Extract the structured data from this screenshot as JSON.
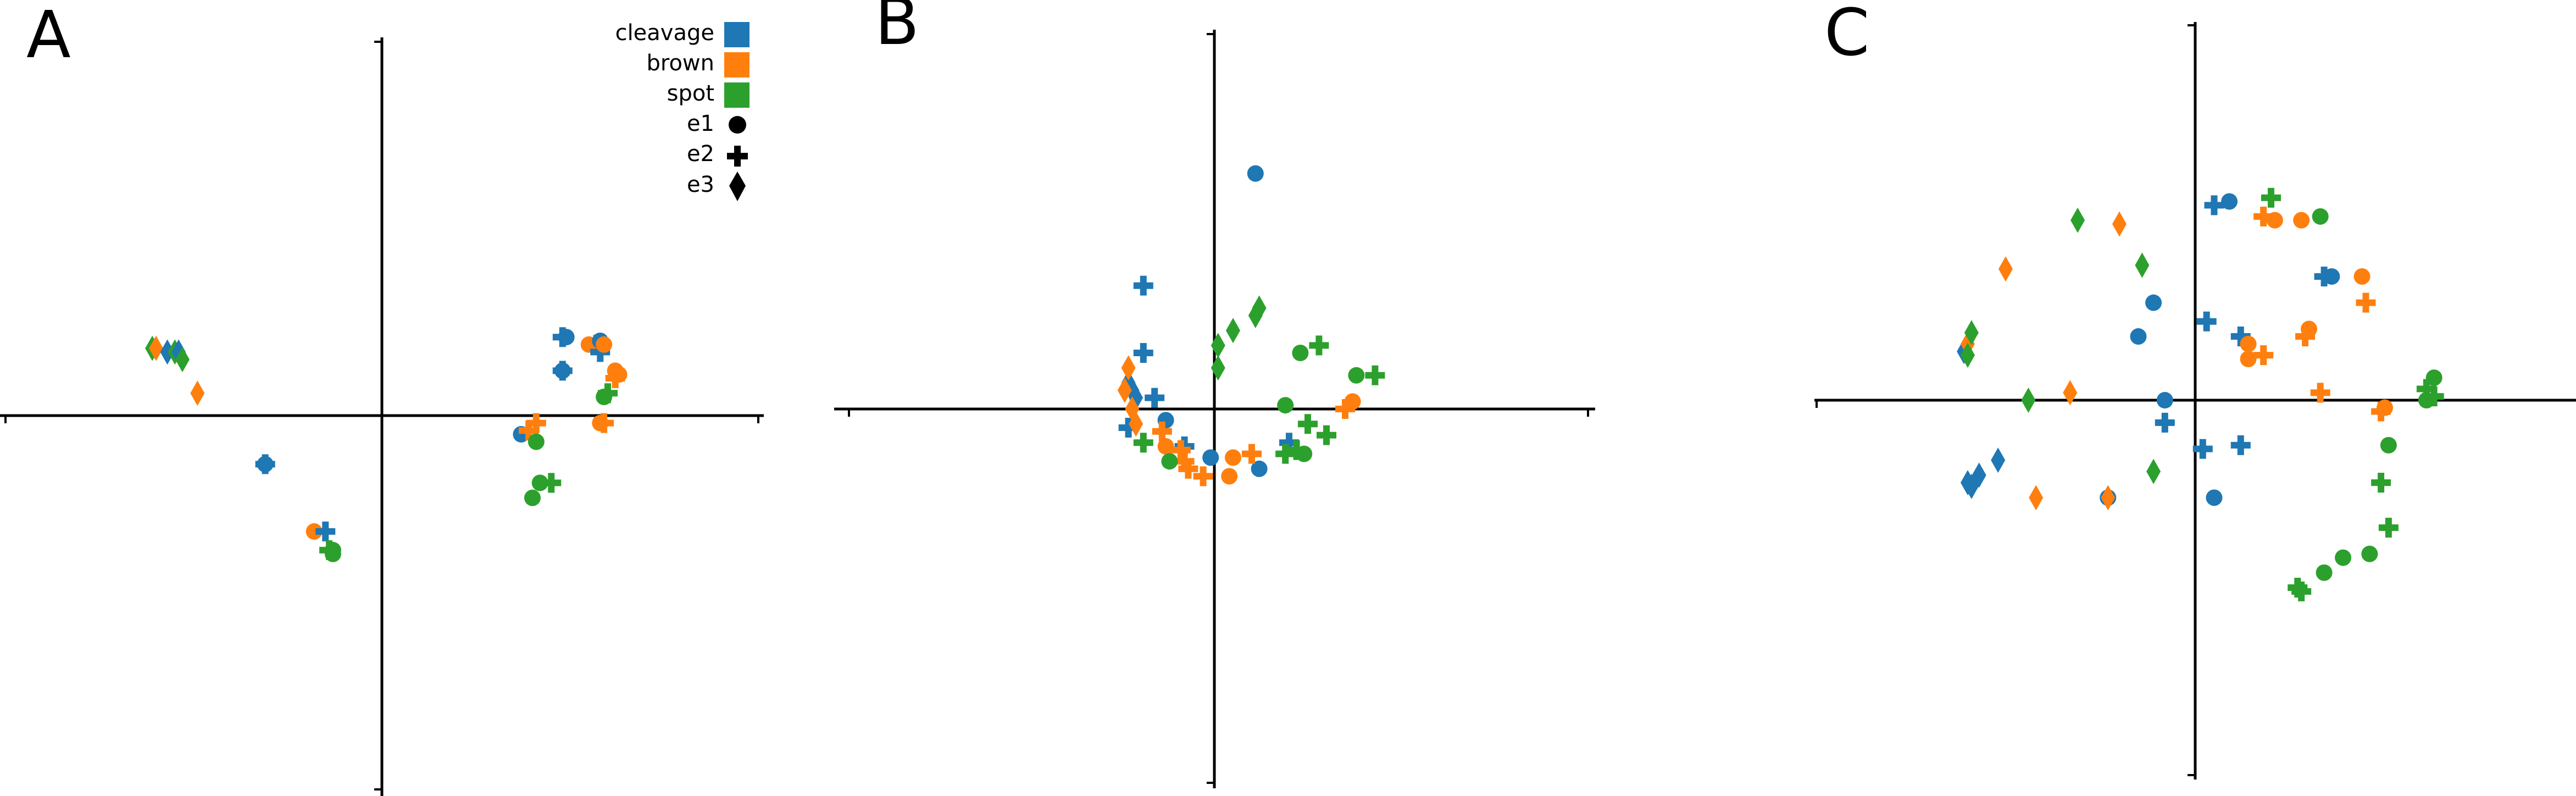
{
  "colors": {
    "cleavage": "#1f77b4",
    "brown": "#ff7f0e",
    "spot": "#2ca02c"
  },
  "legend": {
    "position": "top-right of panel A",
    "color_entries": [
      {
        "label": "cleavage",
        "color": "#1f77b4"
      },
      {
        "label": "brown",
        "color": "#ff7f0e"
      },
      {
        "label": "spot",
        "color": "#2ca02c"
      }
    ],
    "marker_entries": [
      {
        "label": "e1",
        "marker": "circle"
      },
      {
        "label": "e2",
        "marker": "plus"
      },
      {
        "label": "e3",
        "marker": "diamond"
      }
    ]
  },
  "chart_data": [
    {
      "panel": "A",
      "type": "scatter",
      "title": "",
      "xlabel": "",
      "ylabel": "",
      "xlim": [
        -1,
        1
      ],
      "ylim": [
        -1,
        1
      ],
      "grid": false,
      "axes": "centered spines, no tick labels",
      "points": [
        {
          "x": -0.61,
          "y": 0.18,
          "group": "spot",
          "marker": "diamond"
        },
        {
          "x": -0.6,
          "y": 0.18,
          "group": "brown",
          "marker": "diamond"
        },
        {
          "x": -0.57,
          "y": 0.17,
          "group": "cleavage",
          "marker": "diamond"
        },
        {
          "x": -0.55,
          "y": 0.17,
          "group": "spot",
          "marker": "diamond"
        },
        {
          "x": -0.54,
          "y": 0.17,
          "group": "cleavage",
          "marker": "diamond"
        },
        {
          "x": -0.53,
          "y": 0.15,
          "group": "spot",
          "marker": "diamond"
        },
        {
          "x": -0.49,
          "y": 0.06,
          "group": "brown",
          "marker": "diamond"
        },
        {
          "x": -0.31,
          "y": -0.13,
          "group": "cleavage",
          "marker": "plus"
        },
        {
          "x": -0.31,
          "y": -0.13,
          "group": "cleavage",
          "marker": "circle"
        },
        {
          "x": -0.18,
          "y": -0.31,
          "group": "brown",
          "marker": "circle"
        },
        {
          "x": -0.15,
          "y": -0.31,
          "group": "cleavage",
          "marker": "plus"
        },
        {
          "x": -0.14,
          "y": -0.36,
          "group": "spot",
          "marker": "plus"
        },
        {
          "x": -0.13,
          "y": -0.36,
          "group": "spot",
          "marker": "circle"
        },
        {
          "x": -0.13,
          "y": -0.37,
          "group": "spot",
          "marker": "circle"
        },
        {
          "x": 0.37,
          "y": -0.05,
          "group": "cleavage",
          "marker": "circle"
        },
        {
          "x": 0.39,
          "y": -0.04,
          "group": "brown",
          "marker": "plus"
        },
        {
          "x": 0.41,
          "y": -0.02,
          "group": "brown",
          "marker": "plus"
        },
        {
          "x": 0.41,
          "y": -0.07,
          "group": "spot",
          "marker": "circle"
        },
        {
          "x": 0.42,
          "y": -0.18,
          "group": "spot",
          "marker": "circle"
        },
        {
          "x": 0.4,
          "y": -0.22,
          "group": "spot",
          "marker": "circle"
        },
        {
          "x": 0.45,
          "y": -0.18,
          "group": "spot",
          "marker": "plus"
        },
        {
          "x": 0.48,
          "y": 0.21,
          "group": "cleavage",
          "marker": "plus"
        },
        {
          "x": 0.49,
          "y": 0.21,
          "group": "cleavage",
          "marker": "circle"
        },
        {
          "x": 0.48,
          "y": 0.12,
          "group": "cleavage",
          "marker": "plus"
        },
        {
          "x": 0.48,
          "y": 0.12,
          "group": "cleavage",
          "marker": "circle"
        },
        {
          "x": 0.55,
          "y": 0.19,
          "group": "brown",
          "marker": "circle"
        },
        {
          "x": 0.57,
          "y": 0.19,
          "group": "brown",
          "marker": "plus"
        },
        {
          "x": 0.58,
          "y": 0.17,
          "group": "cleavage",
          "marker": "plus"
        },
        {
          "x": 0.58,
          "y": 0.2,
          "group": "cleavage",
          "marker": "circle"
        },
        {
          "x": 0.59,
          "y": 0.19,
          "group": "brown",
          "marker": "circle"
        },
        {
          "x": 0.59,
          "y": 0.05,
          "group": "spot",
          "marker": "circle"
        },
        {
          "x": 0.6,
          "y": 0.06,
          "group": "spot",
          "marker": "plus"
        },
        {
          "x": 0.62,
          "y": 0.12,
          "group": "brown",
          "marker": "circle"
        },
        {
          "x": 0.62,
          "y": 0.1,
          "group": "brown",
          "marker": "plus"
        },
        {
          "x": 0.63,
          "y": 0.11,
          "group": "brown",
          "marker": "circle"
        },
        {
          "x": 0.58,
          "y": -0.02,
          "group": "brown",
          "marker": "circle"
        },
        {
          "x": 0.59,
          "y": -0.02,
          "group": "brown",
          "marker": "plus"
        }
      ]
    },
    {
      "panel": "B",
      "type": "scatter",
      "title": "",
      "xlabel": "",
      "ylabel": "",
      "xlim": [
        -1,
        1
      ],
      "ylim": [
        -1,
        1
      ],
      "grid": false,
      "axes": "centered spines, no tick labels",
      "points": [
        {
          "x": 0.11,
          "y": 0.63,
          "group": "cleavage",
          "marker": "circle"
        },
        {
          "x": -0.19,
          "y": 0.33,
          "group": "cleavage",
          "marker": "plus"
        },
        {
          "x": -0.19,
          "y": 0.15,
          "group": "cleavage",
          "marker": "plus"
        },
        {
          "x": -0.23,
          "y": 0.07,
          "group": "cleavage",
          "marker": "diamond"
        },
        {
          "x": -0.22,
          "y": 0.05,
          "group": "cleavage",
          "marker": "diamond"
        },
        {
          "x": -0.21,
          "y": 0.03,
          "group": "cleavage",
          "marker": "diamond"
        },
        {
          "x": -0.16,
          "y": 0.03,
          "group": "cleavage",
          "marker": "plus"
        },
        {
          "x": -0.13,
          "y": -0.03,
          "group": "cleavage",
          "marker": "circle"
        },
        {
          "x": -0.23,
          "y": -0.05,
          "group": "cleavage",
          "marker": "plus"
        },
        {
          "x": -0.08,
          "y": -0.1,
          "group": "cleavage",
          "marker": "plus"
        },
        {
          "x": -0.01,
          "y": -0.13,
          "group": "cleavage",
          "marker": "circle"
        },
        {
          "x": 0.12,
          "y": -0.16,
          "group": "cleavage",
          "marker": "circle"
        },
        {
          "x": 0.2,
          "y": -0.09,
          "group": "cleavage",
          "marker": "plus"
        },
        {
          "x": -0.23,
          "y": 0.11,
          "group": "brown",
          "marker": "diamond"
        },
        {
          "x": -0.24,
          "y": 0.05,
          "group": "brown",
          "marker": "diamond"
        },
        {
          "x": -0.22,
          "y": 0.0,
          "group": "brown",
          "marker": "diamond"
        },
        {
          "x": -0.21,
          "y": -0.04,
          "group": "brown",
          "marker": "diamond"
        },
        {
          "x": -0.14,
          "y": -0.06,
          "group": "brown",
          "marker": "plus"
        },
        {
          "x": -0.13,
          "y": -0.1,
          "group": "brown",
          "marker": "circle"
        },
        {
          "x": -0.09,
          "y": -0.11,
          "group": "brown",
          "marker": "plus"
        },
        {
          "x": -0.08,
          "y": -0.14,
          "group": "brown",
          "marker": "plus"
        },
        {
          "x": -0.07,
          "y": -0.16,
          "group": "brown",
          "marker": "plus"
        },
        {
          "x": -0.03,
          "y": -0.18,
          "group": "brown",
          "marker": "plus"
        },
        {
          "x": 0.04,
          "y": -0.18,
          "group": "brown",
          "marker": "circle"
        },
        {
          "x": 0.05,
          "y": -0.13,
          "group": "brown",
          "marker": "circle"
        },
        {
          "x": 0.1,
          "y": -0.12,
          "group": "brown",
          "marker": "plus"
        },
        {
          "x": 0.35,
          "y": 0.0,
          "group": "brown",
          "marker": "plus"
        },
        {
          "x": 0.37,
          "y": 0.02,
          "group": "brown",
          "marker": "circle"
        },
        {
          "x": 0.12,
          "y": 0.27,
          "group": "spot",
          "marker": "diamond"
        },
        {
          "x": 0.11,
          "y": 0.25,
          "group": "spot",
          "marker": "diamond"
        },
        {
          "x": 0.05,
          "y": 0.21,
          "group": "spot",
          "marker": "diamond"
        },
        {
          "x": 0.01,
          "y": 0.17,
          "group": "spot",
          "marker": "diamond"
        },
        {
          "x": 0.01,
          "y": 0.11,
          "group": "spot",
          "marker": "diamond"
        },
        {
          "x": 0.23,
          "y": 0.15,
          "group": "spot",
          "marker": "circle"
        },
        {
          "x": 0.28,
          "y": 0.17,
          "group": "spot",
          "marker": "plus"
        },
        {
          "x": 0.38,
          "y": 0.09,
          "group": "spot",
          "marker": "circle"
        },
        {
          "x": 0.43,
          "y": 0.09,
          "group": "spot",
          "marker": "plus"
        },
        {
          "x": 0.19,
          "y": 0.01,
          "group": "spot",
          "marker": "circle"
        },
        {
          "x": 0.25,
          "y": -0.04,
          "group": "spot",
          "marker": "plus"
        },
        {
          "x": 0.3,
          "y": -0.07,
          "group": "spot",
          "marker": "plus"
        },
        {
          "x": 0.19,
          "y": -0.12,
          "group": "spot",
          "marker": "plus"
        },
        {
          "x": 0.22,
          "y": -0.11,
          "group": "spot",
          "marker": "plus"
        },
        {
          "x": 0.24,
          "y": -0.12,
          "group": "spot",
          "marker": "circle"
        },
        {
          "x": -0.19,
          "y": -0.09,
          "group": "spot",
          "marker": "plus"
        },
        {
          "x": -0.12,
          "y": -0.14,
          "group": "spot",
          "marker": "circle"
        }
      ]
    },
    {
      "panel": "C",
      "type": "scatter",
      "title": "",
      "xlabel": "",
      "ylabel": "",
      "xlim": [
        -1,
        1
      ],
      "ylim": [
        -1,
        1
      ],
      "grid": false,
      "axes": "centered spines, no tick labels",
      "points": [
        {
          "x": 0.05,
          "y": 0.52,
          "group": "cleavage",
          "marker": "plus"
        },
        {
          "x": 0.09,
          "y": 0.53,
          "group": "cleavage",
          "marker": "circle"
        },
        {
          "x": 0.34,
          "y": 0.33,
          "group": "cleavage",
          "marker": "plus"
        },
        {
          "x": 0.36,
          "y": 0.33,
          "group": "cleavage",
          "marker": "circle"
        },
        {
          "x": -0.11,
          "y": 0.26,
          "group": "cleavage",
          "marker": "circle"
        },
        {
          "x": 0.03,
          "y": 0.21,
          "group": "cleavage",
          "marker": "plus"
        },
        {
          "x": -0.15,
          "y": 0.17,
          "group": "cleavage",
          "marker": "circle"
        },
        {
          "x": 0.12,
          "y": 0.17,
          "group": "cleavage",
          "marker": "plus"
        },
        {
          "x": -0.08,
          "y": 0.0,
          "group": "cleavage",
          "marker": "circle"
        },
        {
          "x": -0.08,
          "y": -0.06,
          "group": "cleavage",
          "marker": "plus"
        },
        {
          "x": 0.02,
          "y": -0.13,
          "group": "cleavage",
          "marker": "plus"
        },
        {
          "x": 0.12,
          "y": -0.12,
          "group": "cleavage",
          "marker": "plus"
        },
        {
          "x": 0.05,
          "y": -0.26,
          "group": "cleavage",
          "marker": "circle"
        },
        {
          "x": -0.23,
          "y": -0.26,
          "group": "cleavage",
          "marker": "circle"
        },
        {
          "x": -0.52,
          "y": -0.16,
          "group": "cleavage",
          "marker": "diamond"
        },
        {
          "x": -0.57,
          "y": -0.2,
          "group": "cleavage",
          "marker": "diamond"
        },
        {
          "x": -0.6,
          "y": -0.22,
          "group": "cleavage",
          "marker": "diamond"
        },
        {
          "x": -0.59,
          "y": -0.23,
          "group": "cleavage",
          "marker": "diamond"
        },
        {
          "x": -0.61,
          "y": 0.13,
          "group": "cleavage",
          "marker": "diamond"
        },
        {
          "x": -0.2,
          "y": 0.47,
          "group": "brown",
          "marker": "diamond"
        },
        {
          "x": -0.5,
          "y": 0.35,
          "group": "brown",
          "marker": "diamond"
        },
        {
          "x": -0.6,
          "y": 0.15,
          "group": "brown",
          "marker": "diamond"
        },
        {
          "x": -0.33,
          "y": 0.02,
          "group": "brown",
          "marker": "diamond"
        },
        {
          "x": -0.42,
          "y": -0.26,
          "group": "brown",
          "marker": "diamond"
        },
        {
          "x": -0.23,
          "y": -0.26,
          "group": "brown",
          "marker": "diamond"
        },
        {
          "x": 0.18,
          "y": 0.49,
          "group": "brown",
          "marker": "plus"
        },
        {
          "x": 0.21,
          "y": 0.48,
          "group": "brown",
          "marker": "circle"
        },
        {
          "x": 0.28,
          "y": 0.48,
          "group": "brown",
          "marker": "circle"
        },
        {
          "x": 0.44,
          "y": 0.33,
          "group": "brown",
          "marker": "circle"
        },
        {
          "x": 0.45,
          "y": 0.26,
          "group": "brown",
          "marker": "plus"
        },
        {
          "x": 0.3,
          "y": 0.19,
          "group": "brown",
          "marker": "circle"
        },
        {
          "x": 0.29,
          "y": 0.17,
          "group": "brown",
          "marker": "plus"
        },
        {
          "x": 0.14,
          "y": 0.15,
          "group": "brown",
          "marker": "circle"
        },
        {
          "x": 0.14,
          "y": 0.11,
          "group": "brown",
          "marker": "circle"
        },
        {
          "x": 0.18,
          "y": 0.12,
          "group": "brown",
          "marker": "plus"
        },
        {
          "x": 0.33,
          "y": 0.02,
          "group": "brown",
          "marker": "plus"
        },
        {
          "x": 0.5,
          "y": -0.02,
          "group": "brown",
          "marker": "circle"
        },
        {
          "x": 0.49,
          "y": -0.03,
          "group": "brown",
          "marker": "plus"
        },
        {
          "x": 0.2,
          "y": 0.54,
          "group": "spot",
          "marker": "plus"
        },
        {
          "x": 0.33,
          "y": 0.49,
          "group": "spot",
          "marker": "circle"
        },
        {
          "x": -0.31,
          "y": 0.48,
          "group": "spot",
          "marker": "diamond"
        },
        {
          "x": -0.14,
          "y": 0.36,
          "group": "spot",
          "marker": "diamond"
        },
        {
          "x": -0.59,
          "y": 0.18,
          "group": "spot",
          "marker": "diamond"
        },
        {
          "x": -0.6,
          "y": 0.12,
          "group": "spot",
          "marker": "diamond"
        },
        {
          "x": -0.44,
          "y": 0.0,
          "group": "spot",
          "marker": "diamond"
        },
        {
          "x": -0.11,
          "y": -0.19,
          "group": "spot",
          "marker": "diamond"
        },
        {
          "x": 0.63,
          "y": 0.06,
          "group": "spot",
          "marker": "circle"
        },
        {
          "x": 0.61,
          "y": 0.03,
          "group": "spot",
          "marker": "plus"
        },
        {
          "x": 0.63,
          "y": 0.01,
          "group": "spot",
          "marker": "plus"
        },
        {
          "x": 0.61,
          "y": 0.0,
          "group": "spot",
          "marker": "circle"
        },
        {
          "x": 0.51,
          "y": -0.12,
          "group": "spot",
          "marker": "circle"
        },
        {
          "x": 0.49,
          "y": -0.22,
          "group": "spot",
          "marker": "plus"
        },
        {
          "x": 0.51,
          "y": -0.34,
          "group": "spot",
          "marker": "plus"
        },
        {
          "x": 0.46,
          "y": -0.41,
          "group": "spot",
          "marker": "circle"
        },
        {
          "x": 0.39,
          "y": -0.42,
          "group": "spot",
          "marker": "circle"
        },
        {
          "x": 0.34,
          "y": -0.46,
          "group": "spot",
          "marker": "circle"
        },
        {
          "x": 0.27,
          "y": -0.5,
          "group": "spot",
          "marker": "plus"
        },
        {
          "x": 0.28,
          "y": -0.51,
          "group": "spot",
          "marker": "plus"
        }
      ]
    }
  ]
}
